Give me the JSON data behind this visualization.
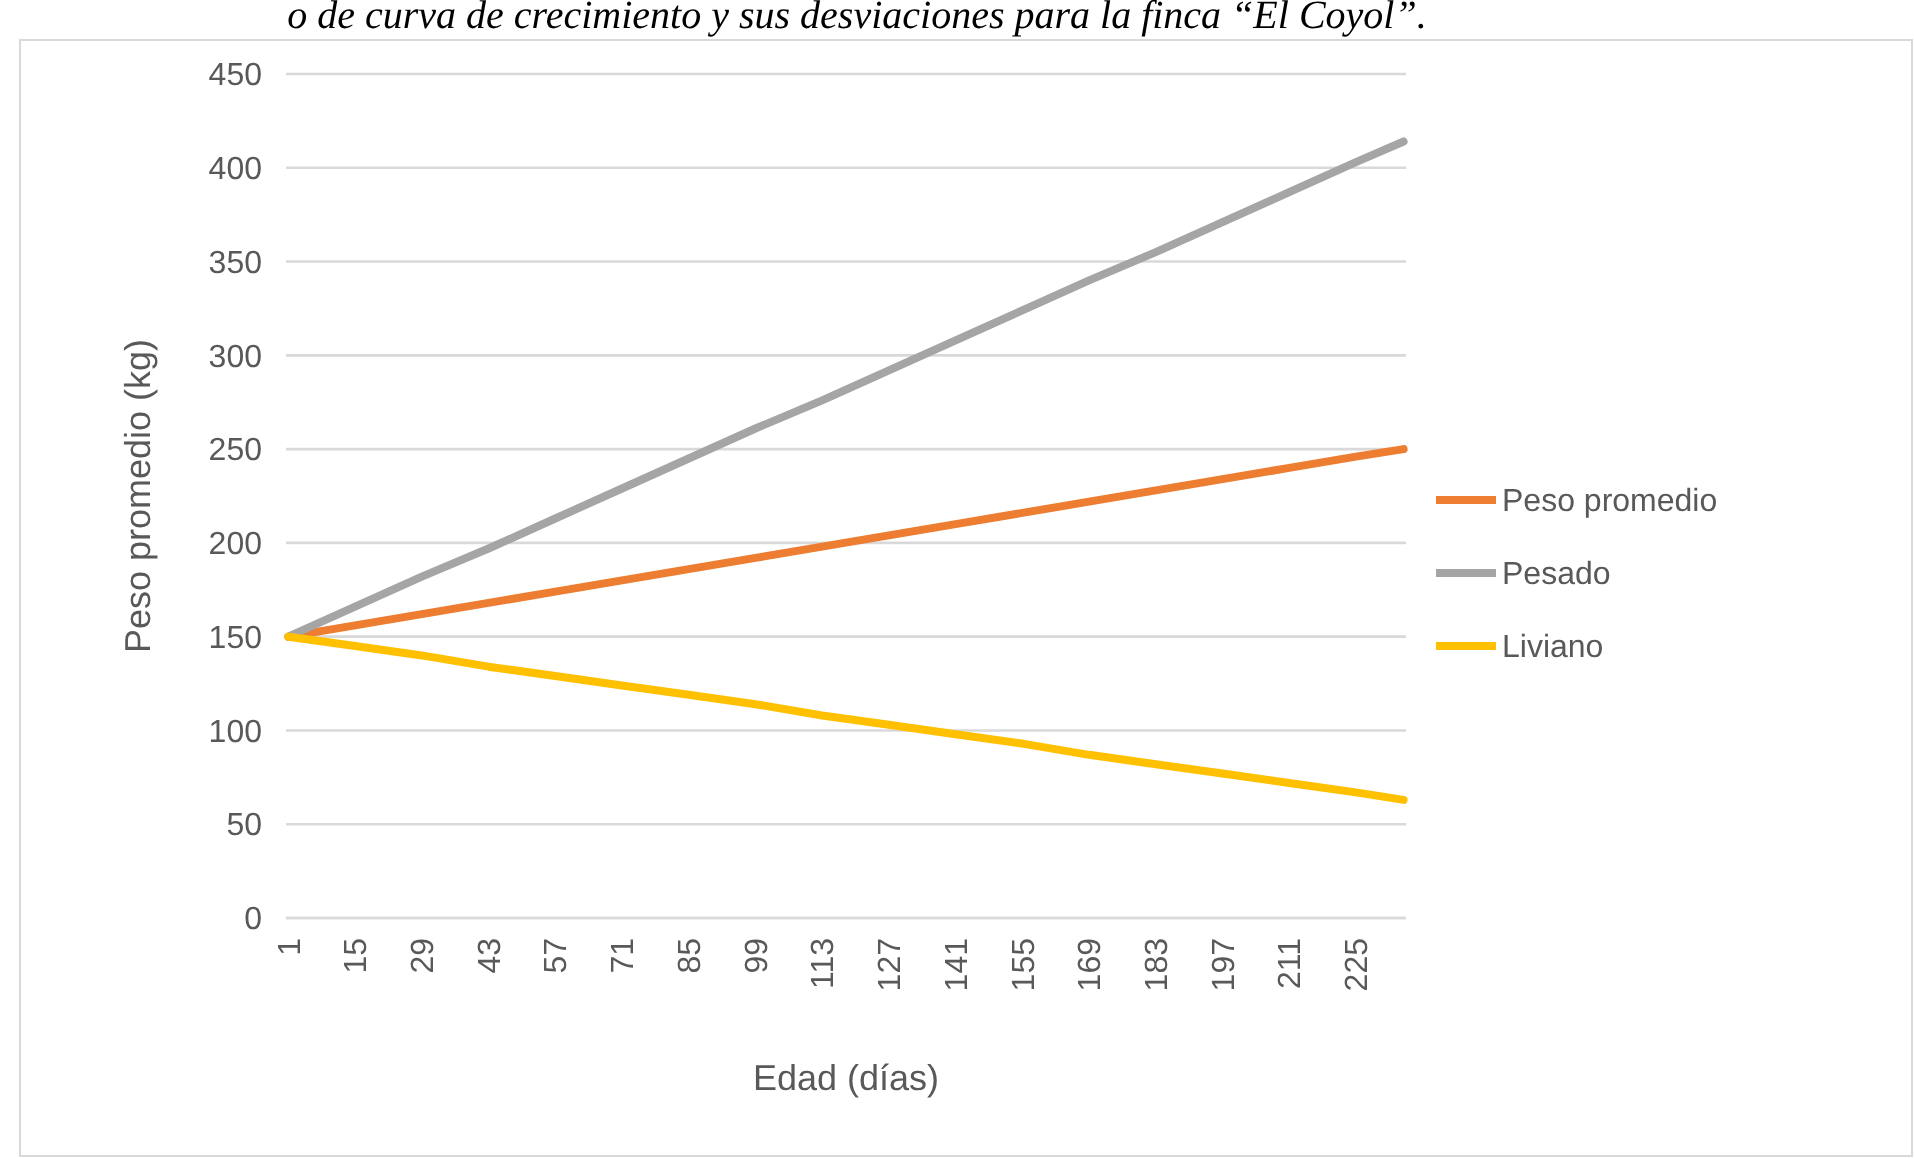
{
  "chart_data": {
    "type": "line",
    "title": "o de curva de crecimiento y sus desviaciones para la finca “El Coyol”.",
    "xlabel": "Edad (días)",
    "ylabel": "Peso promedio (kg)",
    "x": [
      1,
      15,
      29,
      43,
      57,
      71,
      85,
      99,
      113,
      127,
      141,
      155,
      169,
      183,
      197,
      211,
      225,
      235
    ],
    "series": [
      {
        "name": "Peso promedio",
        "color": "#ed7d31",
        "values": [
          150,
          156,
          162,
          168,
          174,
          180,
          186,
          192,
          198,
          204,
          210,
          216,
          222,
          228,
          234,
          240,
          246,
          250
        ]
      },
      {
        "name": "Pesado",
        "color": "#a5a5a5",
        "values": [
          150,
          166,
          182,
          197,
          213,
          229,
          245,
          261,
          276,
          292,
          308,
          324,
          340,
          355,
          371,
          387,
          403,
          414
        ]
      },
      {
        "name": "Liviano",
        "color": "#ffc000",
        "values": [
          150,
          145,
          140,
          134,
          129,
          124,
          119,
          114,
          108,
          103,
          98,
          93,
          87,
          82,
          77,
          72,
          67,
          63
        ]
      }
    ],
    "xlim": [
      0.5,
      235.5
    ],
    "xticks": [
      1,
      15,
      29,
      43,
      57,
      71,
      85,
      99,
      113,
      127,
      141,
      155,
      169,
      183,
      197,
      211,
      225
    ],
    "ylim": [
      0,
      450
    ],
    "yticks": [
      0,
      50,
      100,
      150,
      200,
      250,
      300,
      350,
      400,
      450
    ],
    "grid": "y",
    "legend": "right",
    "marker": "none",
    "line_style": "solid"
  }
}
